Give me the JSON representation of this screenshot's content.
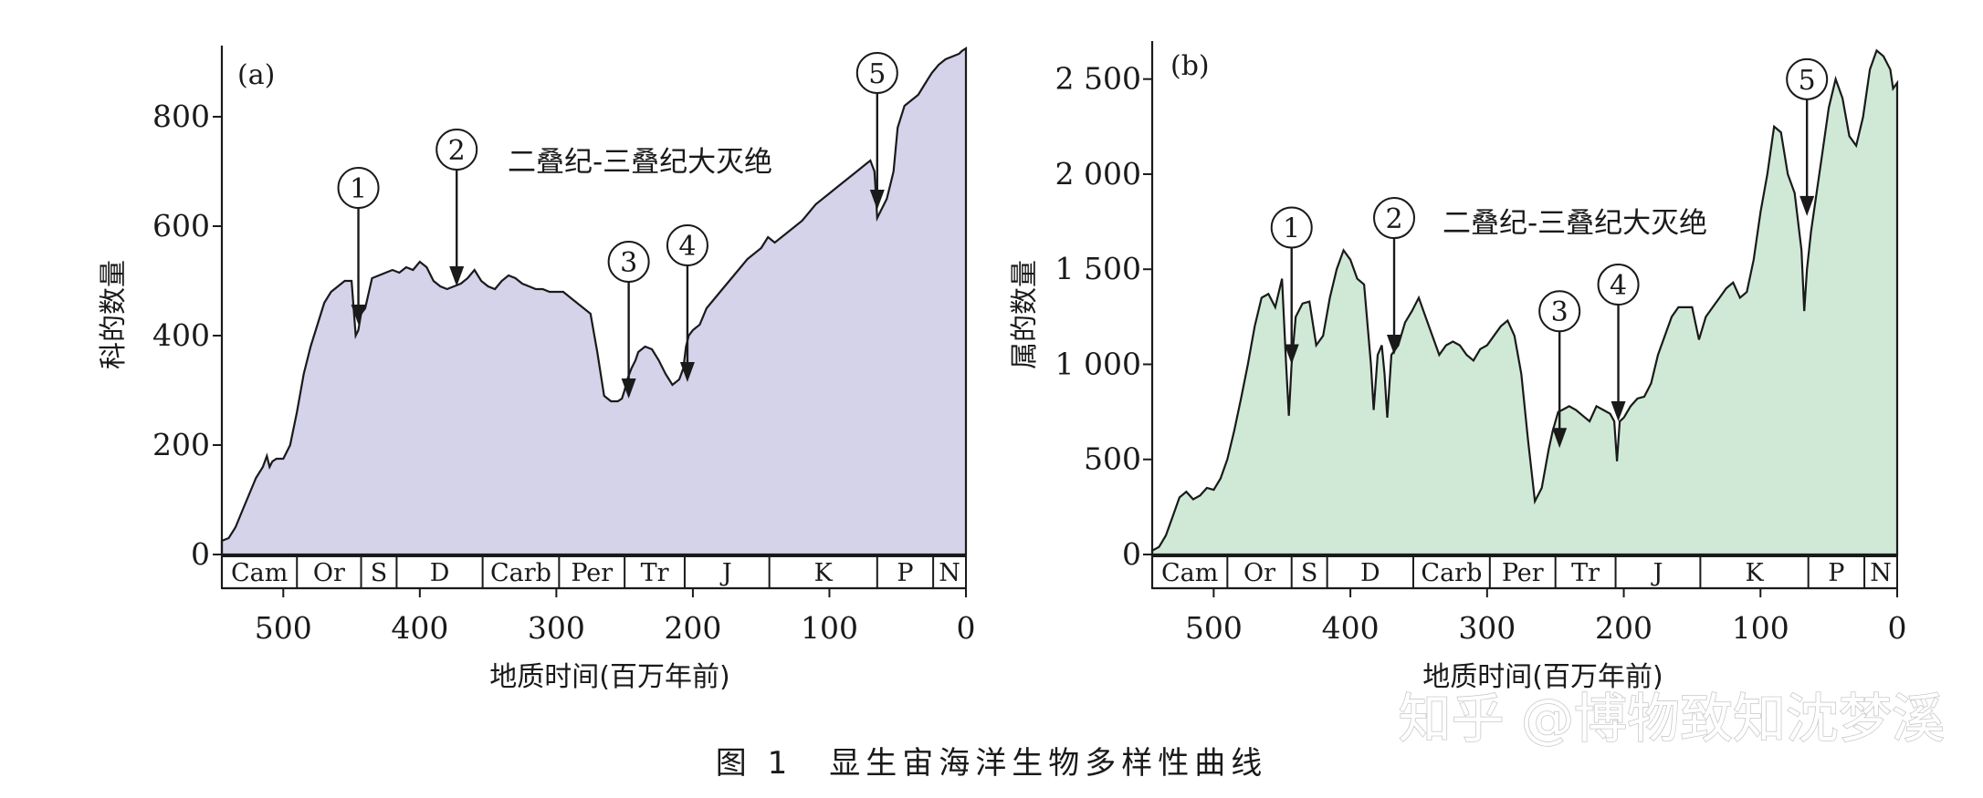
{
  "caption": "图 1　显生宙海洋生物多样性曲线",
  "watermark": "知乎 @博物致知沈梦溪",
  "colors": {
    "panel_a_fill": "#d5d3ea",
    "panel_b_fill": "#cfe9d6",
    "line": "#1a1a1a"
  },
  "chart_data": [
    {
      "type": "area",
      "panel_label": "(a)",
      "xlabel": "地质时间(百万年前)",
      "ylabel": "科的数量",
      "annotation": "二叠纪-三叠纪大灭绝",
      "xlim": [
        545,
        0
      ],
      "ylim": [
        0,
        930
      ],
      "x_reversed": true,
      "grid": false,
      "x_ticks": [
        500,
        400,
        300,
        200,
        100,
        0
      ],
      "y_ticks": [
        0,
        200,
        400,
        600,
        800
      ],
      "periods": [
        {
          "label": "Cam",
          "start": 545,
          "end": 490
        },
        {
          "label": "Or",
          "start": 490,
          "end": 443
        },
        {
          "label": "S",
          "start": 443,
          "end": 417
        },
        {
          "label": "D",
          "start": 417,
          "end": 354
        },
        {
          "label": "Carb",
          "start": 354,
          "end": 298
        },
        {
          "label": "Per",
          "start": 298,
          "end": 250
        },
        {
          "label": "Tr",
          "start": 250,
          "end": 206
        },
        {
          "label": "J",
          "start": 206,
          "end": 144
        },
        {
          "label": "K",
          "start": 144,
          "end": 65
        },
        {
          "label": "P",
          "start": 65,
          "end": 24
        },
        {
          "label": "N",
          "start": 24,
          "end": 0
        }
      ],
      "series": [
        {
          "x": [
            545,
            540,
            535,
            530,
            525,
            520,
            515,
            512,
            510,
            508,
            505,
            500,
            495,
            490,
            485,
            480,
            475,
            470,
            465,
            460,
            455,
            450,
            447,
            445,
            443,
            440,
            435,
            430,
            425,
            420,
            415,
            410,
            405,
            400,
            395,
            390,
            385,
            380,
            375,
            370,
            365,
            360,
            355,
            350,
            345,
            340,
            335,
            330,
            325,
            320,
            315,
            310,
            305,
            300,
            295,
            290,
            285,
            280,
            275,
            270,
            265,
            260,
            255,
            252,
            250,
            248,
            245,
            242,
            240,
            235,
            230,
            225,
            220,
            215,
            210,
            207,
            205,
            203,
            200,
            195,
            190,
            180,
            170,
            160,
            150,
            145,
            140,
            130,
            120,
            110,
            100,
            95,
            90,
            85,
            80,
            75,
            70,
            67,
            66,
            65,
            62,
            58,
            55,
            53,
            50,
            45,
            40,
            35,
            30,
            25,
            20,
            15,
            10,
            5,
            3,
            0
          ],
          "y": [
            25,
            30,
            50,
            80,
            110,
            140,
            160,
            180,
            160,
            170,
            175,
            175,
            200,
            260,
            330,
            380,
            420,
            460,
            480,
            490,
            500,
            500,
            400,
            410,
            440,
            450,
            505,
            510,
            515,
            520,
            515,
            525,
            520,
            535,
            525,
            500,
            490,
            485,
            490,
            495,
            505,
            520,
            500,
            490,
            485,
            500,
            510,
            505,
            495,
            490,
            485,
            485,
            480,
            480,
            480,
            470,
            460,
            450,
            440,
            370,
            290,
            280,
            280,
            285,
            300,
            320,
            340,
            355,
            370,
            380,
            375,
            355,
            330,
            310,
            320,
            340,
            380,
            400,
            410,
            420,
            450,
            480,
            510,
            540,
            560,
            580,
            570,
            590,
            610,
            640,
            660,
            670,
            680,
            690,
            700,
            710,
            720,
            700,
            660,
            615,
            630,
            650,
            680,
            700,
            780,
            820,
            830,
            840,
            860,
            880,
            895,
            905,
            910,
            915,
            920,
            925
          ]
        }
      ],
      "events": [
        {
          "label": "1",
          "x": 445,
          "y": 420
        },
        {
          "label": "2",
          "x": 373,
          "y": 490
        },
        {
          "label": "3",
          "x": 247,
          "y": 285
        },
        {
          "label": "4",
          "x": 204,
          "y": 315
        },
        {
          "label": "5",
          "x": 65,
          "y": 630
        }
      ]
    },
    {
      "type": "area",
      "panel_label": "(b)",
      "xlabel": "地质时间(百万年前)",
      "ylabel": "属的数量",
      "annotation": "二叠纪-三叠纪大灭绝",
      "xlim": [
        545,
        0
      ],
      "ylim": [
        0,
        2700
      ],
      "x_reversed": true,
      "grid": false,
      "x_ticks": [
        500,
        400,
        300,
        200,
        100,
        0
      ],
      "y_ticks": [
        0,
        500,
        1000,
        1500,
        2000,
        2500
      ],
      "y_tick_labels": [
        "0",
        "500",
        "1 000",
        "1 500",
        "2 000",
        "2 500"
      ],
      "periods": [
        {
          "label": "Cam",
          "start": 545,
          "end": 490
        },
        {
          "label": "Or",
          "start": 490,
          "end": 443
        },
        {
          "label": "S",
          "start": 443,
          "end": 417
        },
        {
          "label": "D",
          "start": 417,
          "end": 354
        },
        {
          "label": "Carb",
          "start": 354,
          "end": 298
        },
        {
          "label": "Per",
          "start": 298,
          "end": 250
        },
        {
          "label": "Tr",
          "start": 250,
          "end": 206
        },
        {
          "label": "J",
          "start": 206,
          "end": 144
        },
        {
          "label": "K",
          "start": 144,
          "end": 65
        },
        {
          "label": "P",
          "start": 65,
          "end": 24
        },
        {
          "label": "N",
          "start": 24,
          "end": 0
        }
      ],
      "series": [
        {
          "x": [
            545,
            540,
            535,
            530,
            525,
            520,
            515,
            510,
            505,
            500,
            495,
            490,
            485,
            480,
            475,
            470,
            465,
            460,
            455,
            450,
            447,
            445,
            443,
            440,
            435,
            430,
            425,
            420,
            415,
            410,
            405,
            400,
            395,
            390,
            385,
            383,
            380,
            377,
            375,
            373,
            370,
            365,
            360,
            355,
            350,
            345,
            340,
            335,
            330,
            325,
            320,
            315,
            310,
            305,
            300,
            295,
            290,
            285,
            280,
            275,
            270,
            265,
            260,
            255,
            252,
            250,
            248,
            245,
            240,
            235,
            230,
            225,
            220,
            215,
            210,
            207,
            205,
            203,
            200,
            195,
            190,
            185,
            180,
            175,
            170,
            165,
            160,
            155,
            150,
            145,
            140,
            135,
            130,
            125,
            120,
            115,
            110,
            105,
            100,
            95,
            90,
            85,
            80,
            75,
            70,
            68,
            66,
            63,
            60,
            55,
            50,
            45,
            40,
            35,
            30,
            25,
            20,
            15,
            10,
            5,
            3,
            0
          ],
          "y": [
            20,
            40,
            100,
            200,
            300,
            330,
            290,
            310,
            350,
            340,
            400,
            500,
            650,
            820,
            1000,
            1200,
            1350,
            1370,
            1300,
            1450,
            1000,
            730,
            1000,
            1250,
            1320,
            1330,
            1100,
            1150,
            1350,
            1500,
            1600,
            1550,
            1450,
            1420,
            1000,
            760,
            1050,
            1100,
            950,
            720,
            1050,
            1100,
            1220,
            1280,
            1350,
            1250,
            1150,
            1050,
            1100,
            1120,
            1100,
            1050,
            1020,
            1080,
            1100,
            1150,
            1200,
            1230,
            1150,
            950,
            600,
            280,
            350,
            550,
            650,
            700,
            750,
            760,
            780,
            760,
            730,
            700,
            780,
            760,
            740,
            700,
            490,
            700,
            720,
            780,
            820,
            830,
            900,
            1050,
            1150,
            1250,
            1300,
            1300,
            1300,
            1130,
            1250,
            1300,
            1350,
            1400,
            1430,
            1350,
            1380,
            1550,
            1800,
            2000,
            2250,
            2220,
            2000,
            1900,
            1600,
            1280,
            1500,
            1700,
            1850,
            2100,
            2350,
            2500,
            2400,
            2200,
            2150,
            2300,
            2550,
            2650,
            2620,
            2550,
            2450,
            2480
          ]
        }
      ],
      "events": [
        {
          "label": "1",
          "x": 443,
          "y": 1000
        },
        {
          "label": "2",
          "x": 368,
          "y": 1050
        },
        {
          "label": "3",
          "x": 247,
          "y": 560
        },
        {
          "label": "4",
          "x": 204,
          "y": 700
        },
        {
          "label": "5",
          "x": 66,
          "y": 1780
        }
      ]
    }
  ]
}
